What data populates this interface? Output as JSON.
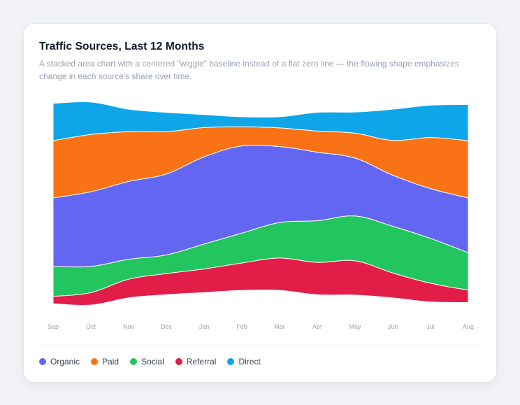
{
  "chart_data": {
    "type": "area",
    "subtype": "streamgraph",
    "title": "Traffic Sources, Last 12 Months",
    "subtitle": "A stacked area chart with a centered \"wiggle\" baseline instead of a flat zero line — the flowing shape emphasizes change in each source's share over time.",
    "categories": [
      "Sep",
      "Oct",
      "Nov",
      "Dec",
      "Jan",
      "Feb",
      "Mar",
      "Apr",
      "May",
      "Jun",
      "Jul",
      "Aug"
    ],
    "series": [
      {
        "name": "Referral",
        "color": "#e11d48",
        "values": [
          12,
          20,
          30,
          34,
          38,
          44,
          52,
          52,
          55,
          40,
          30,
          20
        ]
      },
      {
        "name": "Social",
        "color": "#22c55e",
        "values": [
          48,
          42,
          32,
          30,
          40,
          48,
          57,
          67,
          72,
          75,
          72,
          60
        ]
      },
      {
        "name": "Organic",
        "color": "#6366f1",
        "values": [
          110,
          120,
          125,
          130,
          140,
          140,
          122,
          110,
          93,
          82,
          80,
          88
        ]
      },
      {
        "name": "Paid",
        "color": "#f97316",
        "values": [
          92,
          92,
          80,
          68,
          47,
          31,
          30,
          34,
          40,
          56,
          82,
          92
        ]
      },
      {
        "name": "Direct",
        "color": "#0ea5e9",
        "values": [
          60,
          52,
          36,
          31,
          21,
          16,
          18,
          30,
          34,
          50,
          52,
          58
        ]
      }
    ],
    "baseline": "wiggle",
    "legend_position": "bottom-left",
    "grid": false
  },
  "legend": {
    "items": [
      {
        "label": "Organic",
        "color": "#6366f1"
      },
      {
        "label": "Paid",
        "color": "#f97316"
      },
      {
        "label": "Social",
        "color": "#22c55e"
      },
      {
        "label": "Referral",
        "color": "#e11d48"
      },
      {
        "label": "Direct",
        "color": "#0ea5e9"
      }
    ]
  }
}
